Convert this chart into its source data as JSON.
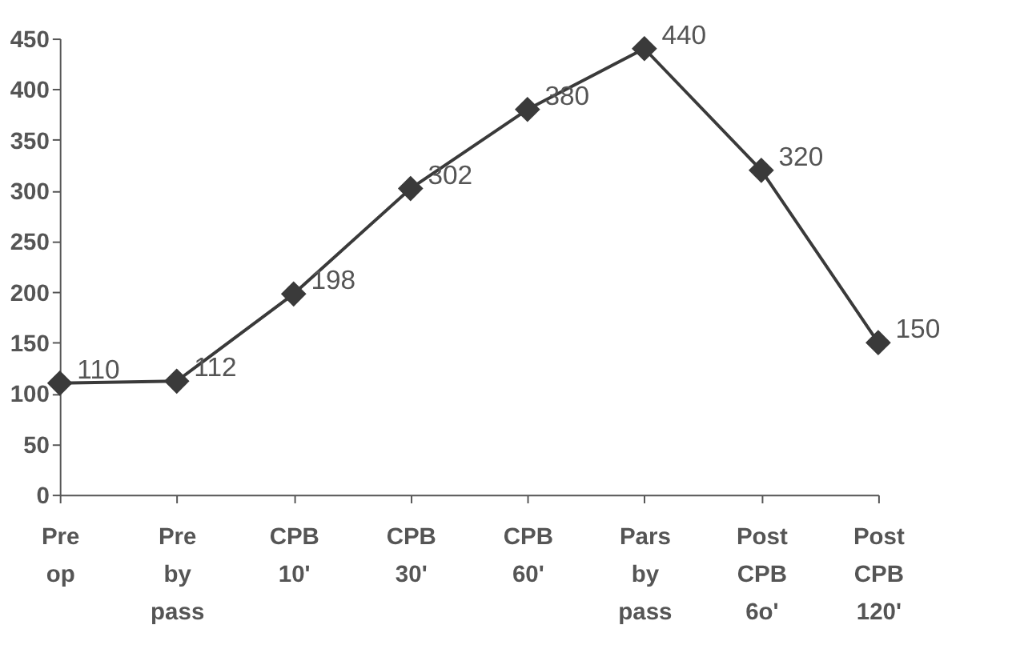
{
  "chart_data": {
    "type": "line",
    "categories": [
      "Pre op",
      "Pre by pass",
      "CPB 10'",
      "CPB 30'",
      "CPB 60'",
      "Pars by pass",
      "Post CPB 6o'",
      "Post CPB 120'"
    ],
    "series": [
      {
        "color": "#3a3a3a",
        "values": [
          110,
          112,
          198,
          302,
          380,
          440,
          320,
          150
        ]
      }
    ],
    "ylim": [
      0,
      450
    ],
    "yticks": [
      0,
      50,
      100,
      150,
      200,
      250,
      300,
      350,
      400,
      450
    ],
    "grid": false,
    "marker": "diamond",
    "line_style": "solid",
    "data_labels": true
  }
}
